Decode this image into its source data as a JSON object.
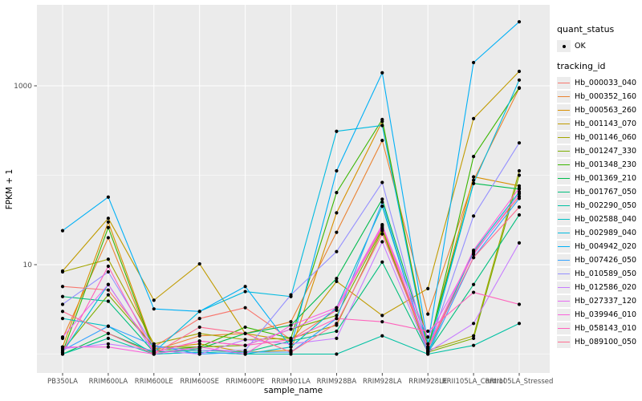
{
  "figure": {
    "x_axis_title": "sample_name",
    "y_axis_title": "FPKM + 1",
    "legend": {
      "quant_status_title": "quant_status",
      "quant_status_item": "OK",
      "tracking_id_title": "tracking_id"
    }
  },
  "chart_data": {
    "type": "line",
    "xlabel": "sample_name",
    "ylabel": "FPKM + 1",
    "y_scale": "log10",
    "ylim": [
      0.62,
      8300
    ],
    "y_major_ticks": [
      10,
      1000
    ],
    "y_major_tick_labels": [
      "10",
      "1000"
    ],
    "y_minor_gridlines": [
      1,
      100
    ],
    "grid": "on",
    "panel_background": "#EBEBEB",
    "gridline_color": "#FFFFFF",
    "point_color": "#000000",
    "axis_text_color": "#4D4D4D",
    "legend_position": "right",
    "quant_status": "OK",
    "categories": [
      "PB350LA",
      "RRIM600LA",
      "RRIM600LE",
      "RRIM600SE",
      "RRIM600PE",
      "RRIM901LA",
      "RRIM928BA",
      "RRIM928LA",
      "RRIM928LE",
      "RRII105LA_Control",
      "RRII105LA_Stressed"
    ],
    "series": [
      {
        "name": "Hb_000033_040",
        "color": "#F8766D",
        "values": [
          5.7,
          5.2,
          1.2,
          2.5,
          3.3,
          1.45,
          3.1,
          26,
          1.15,
          13.5,
          58
        ]
      },
      {
        "name": "Hb_000352_160",
        "color": "#EA8331",
        "values": [
          1.5,
          20,
          1.1,
          1.6,
          1.7,
          2.3,
          23,
          245,
          2.8,
          88,
          940
        ]
      },
      {
        "name": "Hb_000563_260",
        "color": "#D89000",
        "values": [
          1.2,
          30,
          1.15,
          1.3,
          1.05,
          1.1,
          38,
          400,
          1.2,
          96,
          76
        ]
      },
      {
        "name": "Hb_001143_070",
        "color": "#C09B00",
        "values": [
          8.5,
          33,
          4.0,
          10.2,
          1.7,
          1.4,
          6.5,
          2.7,
          5.4,
          430,
          1450
        ]
      },
      {
        "name": "Hb_001146_060",
        "color": "#A3A500",
        "values": [
          8.3,
          11.5,
          1.3,
          1.7,
          1.45,
          1.5,
          2.1,
          24,
          1.1,
          1.6,
          112
        ]
      },
      {
        "name": "Hb_001247_330",
        "color": "#7CAE00",
        "values": [
          1.1,
          4.6,
          1.2,
          1.2,
          1.25,
          1.9,
          2.7,
          25,
          1.05,
          1.5,
          100
        ]
      },
      {
        "name": "Hb_001348_230",
        "color": "#39B600",
        "values": [
          1.05,
          26,
          1.1,
          1.2,
          2.0,
          1.5,
          64,
          420,
          1.1,
          162,
          950
        ]
      },
      {
        "name": "Hb_001369_210",
        "color": "#00BB4E",
        "values": [
          1.0,
          1.7,
          1.05,
          1.15,
          1.7,
          2.1,
          7.0,
          54,
          1.2,
          81,
          70
        ]
      },
      {
        "name": "Hb_001767_050",
        "color": "#00BF7D",
        "values": [
          4.4,
          3.9,
          1.05,
          1.1,
          1.05,
          1.4,
          1.8,
          10.7,
          1.05,
          6.0,
          36
        ]
      },
      {
        "name": "Hb_002290_050",
        "color": "#00C1A3",
        "values": [
          1.0,
          1.5,
          1.0,
          1.05,
          1.0,
          1.0,
          1.0,
          1.6,
          1.0,
          1.25,
          2.2
        ]
      },
      {
        "name": "Hb_002588_040",
        "color": "#00BFC4",
        "values": [
          2.5,
          2.05,
          1.0,
          1.05,
          1.0,
          1.2,
          3.3,
          45,
          1.05,
          14,
          65
        ]
      },
      {
        "name": "Hb_002989_040",
        "color": "#00BAE0",
        "values": [
          1.05,
          6.0,
          1.05,
          3.0,
          5.0,
          4.4,
          310,
          360,
          1.05,
          81,
          1160
        ]
      },
      {
        "name": "Hb_004942_020",
        "color": "#00B0F6",
        "values": [
          24,
          57,
          3.2,
          3.0,
          5.7,
          1.2,
          112,
          1400,
          1.3,
          1820,
          5200
        ]
      },
      {
        "name": "Hb_007426_050",
        "color": "#35A2FF",
        "values": [
          1.1,
          2.05,
          1.25,
          1.0,
          1.05,
          1.05,
          2.5,
          50,
          1.0,
          12,
          55
        ]
      },
      {
        "name": "Hb_010589_050",
        "color": "#9590FF",
        "values": [
          3.6,
          8.3,
          1.2,
          1.1,
          1.1,
          4.6,
          14,
          83,
          1.1,
          35,
          230
        ]
      },
      {
        "name": "Hb_012586_020",
        "color": "#C77CFF",
        "values": [
          1.15,
          1.3,
          1.1,
          1.0,
          1.45,
          1.3,
          1.5,
          18,
          1.05,
          2.2,
          17.5
        ]
      },
      {
        "name": "Hb_027337_120",
        "color": "#E76BF3",
        "values": [
          1.55,
          6.0,
          1.05,
          1.4,
          1.25,
          1.9,
          3.1,
          27,
          1.55,
          13,
          62
        ]
      },
      {
        "name": "Hb_039946_010",
        "color": "#FA62DB",
        "values": [
          1.2,
          1.2,
          1.0,
          1.2,
          1.0,
          2.1,
          3.3,
          28,
          1.2,
          14.5,
          72
        ]
      },
      {
        "name": "Hb_058143_010",
        "color": "#FF62BC",
        "values": [
          1.05,
          9.6,
          1.05,
          1.4,
          1.25,
          1.45,
          2.5,
          2.3,
          1.8,
          4.9,
          3.6
        ]
      },
      {
        "name": "Hb_089100_050",
        "color": "#FF6C91",
        "values": [
          3.0,
          1.7,
          1.0,
          2.0,
          1.7,
          1.05,
          2.2,
          22,
          1.15,
          12,
          44
        ]
      }
    ]
  }
}
